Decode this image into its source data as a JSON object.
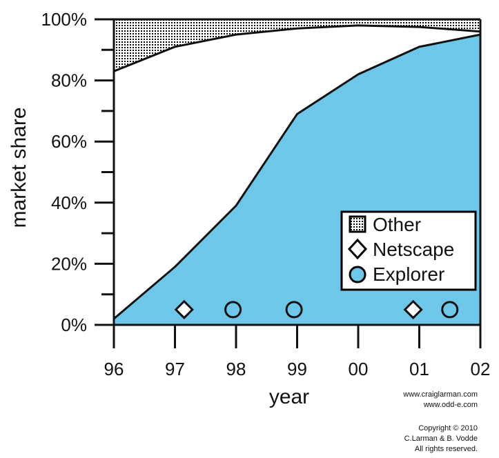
{
  "chart_data": {
    "type": "area",
    "x": [
      "96",
      "97",
      "98",
      "99",
      "00",
      "01",
      "02"
    ],
    "x_values": [
      1996,
      1997,
      1998,
      1999,
      2000,
      2001,
      2002
    ],
    "xlabel": "year",
    "ylabel": "market share",
    "yticks": [
      "0%",
      "20%",
      "40%",
      "60%",
      "80%",
      "100%"
    ],
    "ylim": [
      0,
      100
    ],
    "series": [
      {
        "name": "Explorer",
        "color": "#6ec6e8",
        "x": [
          1996,
          1997,
          1998,
          1999,
          2000,
          2001,
          2002
        ],
        "values": [
          2,
          19,
          39,
          69,
          82,
          91,
          95
        ]
      },
      {
        "name": "Netscape",
        "color": "#ffffff",
        "x": [
          1996,
          1997,
          1998,
          1999,
          2000,
          2001,
          2002
        ],
        "values": [
          81,
          72,
          56,
          28,
          16,
          6.5,
          1
        ]
      },
      {
        "name": "Other",
        "color": "#000000",
        "pattern": "dots",
        "x": [
          1996,
          1997,
          1998,
          1999,
          2000,
          2001,
          2002
        ],
        "values": [
          17,
          9,
          5,
          3,
          2,
          2.5,
          4
        ]
      }
    ],
    "markers": [
      {
        "series": "Netscape",
        "shape": "diamond",
        "x": 1997.15,
        "y": 5
      },
      {
        "series": "Explorer",
        "shape": "circle",
        "x": 1997.95,
        "y": 5
      },
      {
        "series": "Explorer",
        "shape": "circle",
        "x": 1998.95,
        "y": 5
      },
      {
        "series": "Netscape",
        "shape": "diamond",
        "x": 2000.9,
        "y": 5
      },
      {
        "series": "Explorer",
        "shape": "circle",
        "x": 2001.5,
        "y": 5
      }
    ],
    "legend": {
      "placement": "bottom-right",
      "entries": [
        "Other",
        "Netscape",
        "Explorer"
      ]
    },
    "grid": false
  },
  "credits": {
    "site1": "www.craiglarman.com",
    "site2": "www.odd-e.com",
    "copyright": "Copyright © 2010",
    "authors": "C.Larman & B. Vodde",
    "rights": "All rights reserved."
  }
}
